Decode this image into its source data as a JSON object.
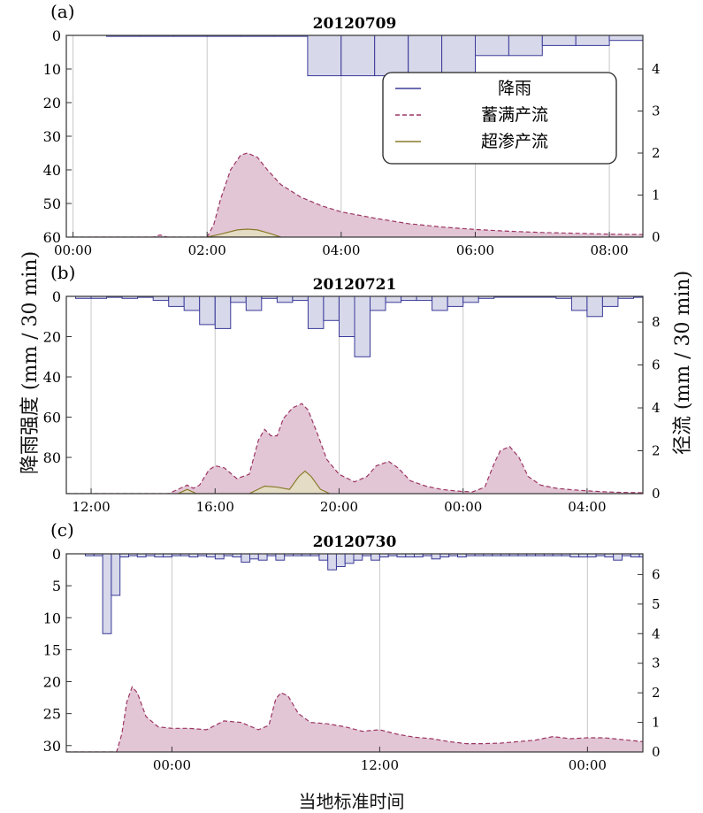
{
  "figure": {
    "ylabel_left": "降雨强度  (mm / 30 min)",
    "ylabel_right": "径流  (mm / 30 min)",
    "xlabel": "当地标准时间",
    "colors": {
      "rain_fill": "#d7d8ea",
      "rain_stroke": "#3b3b9a",
      "runoff_fill": "#e2c6d6",
      "runoff_stroke": "#9c3563",
      "infil_fill": "#e4dcc4",
      "infil_stroke": "#8a7a2a",
      "grid": "#c8c8c8"
    }
  },
  "chart_data": [
    {
      "type": "area",
      "panel_label": "(a)",
      "title": "20120709",
      "xlim_hours": [
        -0.1,
        8.5
      ],
      "x_ticks": [
        {
          "h": 0,
          "label": "00:00"
        },
        {
          "h": 2,
          "label": "02:00"
        },
        {
          "h": 4,
          "label": "04:00"
        },
        {
          "h": 6,
          "label": "06:00"
        },
        {
          "h": 8,
          "label": "08:00"
        }
      ],
      "left_axis": {
        "range": [
          0,
          60
        ],
        "inverted": true,
        "ticks": [
          "0",
          "10",
          "20",
          "30",
          "40",
          "50",
          "60"
        ],
        "tick_values": [
          0,
          10,
          20,
          30,
          40,
          50,
          60
        ]
      },
      "right_axis": {
        "range": [
          0,
          4.8
        ],
        "ticks": [
          "0",
          "1",
          "2",
          "3",
          "4"
        ],
        "tick_values": [
          0,
          1,
          2,
          3,
          4
        ]
      },
      "legend": {
        "placement": "top-right",
        "entries": [
          {
            "label": "降雨",
            "style": "rain"
          },
          {
            "label": "蓄满产流",
            "style": "saturation"
          },
          {
            "label": "超渗产流",
            "style": "infiltration"
          }
        ]
      },
      "rain": {
        "start_h": 0.5,
        "bin_h": 0.5,
        "values": [
          0.3,
          0.3,
          0.3,
          0.3,
          0.3,
          0.3,
          12,
          12,
          12,
          18.5,
          18.5,
          6,
          6,
          3,
          3,
          1.5,
          1.5,
          0.5,
          0.5,
          0.3,
          0.3
        ]
      },
      "runoff_saturation": {
        "x": [
          0,
          1.2,
          1.3,
          1.4,
          1.6,
          2.0,
          2.1,
          2.2,
          2.35,
          2.5,
          2.6,
          2.75,
          2.9,
          3.1,
          3.4,
          3.7,
          4.0,
          4.5,
          5.0,
          5.5,
          6.0,
          6.5,
          7.0,
          7.5,
          8.0,
          8.5
        ],
        "y": [
          0,
          0,
          0.05,
          0,
          0,
          0,
          0.3,
          0.9,
          1.6,
          1.95,
          2.0,
          1.9,
          1.6,
          1.25,
          0.95,
          0.75,
          0.6,
          0.45,
          0.32,
          0.24,
          0.18,
          0.14,
          0.11,
          0.09,
          0.07,
          0.06
        ]
      },
      "runoff_infiltration": {
        "x": [
          2.0,
          2.2,
          2.45,
          2.6,
          2.75,
          2.95,
          3.1
        ],
        "y": [
          0,
          0.07,
          0.17,
          0.19,
          0.17,
          0.08,
          0
        ]
      }
    },
    {
      "type": "area",
      "panel_label": "(b)",
      "title": "20120721",
      "xlim_hours": [
        11.2,
        29.8
      ],
      "x_ticks": [
        {
          "h": 12,
          "label": "12:00"
        },
        {
          "h": 16,
          "label": "16:00"
        },
        {
          "h": 20,
          "label": "20:00"
        },
        {
          "h": 24,
          "label": "00:00"
        },
        {
          "h": 28,
          "label": "04:00"
        }
      ],
      "left_axis": {
        "range": [
          0,
          98
        ],
        "inverted": true,
        "ticks": [
          "0",
          "20",
          "40",
          "60",
          "80"
        ],
        "tick_values": [
          0,
          20,
          40,
          60,
          80
        ]
      },
      "right_axis": {
        "range": [
          0,
          9.2
        ],
        "ticks": [
          "0",
          "2",
          "4",
          "6",
          "8"
        ],
        "tick_values": [
          0,
          2,
          4,
          6,
          8
        ]
      },
      "rain": {
        "start_h": 11.5,
        "bin_h": 0.5,
        "values": [
          1,
          1,
          0.5,
          1,
          0.5,
          2,
          5,
          7,
          14,
          16,
          3,
          7,
          1,
          3,
          2,
          16,
          12,
          20,
          30,
          7,
          3,
          2,
          2,
          7,
          5,
          3,
          1,
          0.3,
          0.3,
          0.3,
          0.3,
          1,
          7,
          10,
          5,
          1,
          0.5
        ]
      },
      "runoff_saturation": {
        "x": [
          11.2,
          14.5,
          14.8,
          15.1,
          15.3,
          15.5,
          15.8,
          16.0,
          16.3,
          16.7,
          17.1,
          17.4,
          17.6,
          17.8,
          18.0,
          18.2,
          18.5,
          18.8,
          19.0,
          19.3,
          19.6,
          20.0,
          20.5,
          20.9,
          21.2,
          21.6,
          21.9,
          22.3,
          22.8,
          23.3,
          23.8,
          24.3,
          24.7,
          25.0,
          25.2,
          25.5,
          25.8,
          26.1,
          26.5,
          27.0,
          27.5,
          28.0,
          28.5,
          29.0,
          29.8
        ],
        "y": [
          0,
          0,
          0.2,
          0.4,
          0.25,
          0.4,
          1.1,
          1.3,
          1.2,
          0.7,
          0.9,
          2.5,
          3.0,
          2.7,
          2.7,
          3.5,
          4.0,
          4.2,
          3.9,
          2.8,
          1.6,
          0.9,
          0.55,
          0.8,
          1.3,
          1.5,
          1.2,
          0.6,
          0.35,
          0.2,
          0.12,
          0.08,
          0.3,
          1.4,
          2.0,
          2.2,
          1.7,
          0.8,
          0.4,
          0.25,
          0.18,
          0.13,
          0.09,
          0.06,
          0.04
        ]
      },
      "runoff_infiltration": {
        "x": [
          14.8,
          15.1,
          15.4,
          17.1,
          17.6,
          18.0,
          18.4,
          18.7,
          18.9,
          19.1,
          19.4,
          19.7
        ],
        "y": [
          0,
          0.2,
          0,
          0,
          0.35,
          0.3,
          0.2,
          0.8,
          1.05,
          0.8,
          0.2,
          0
        ]
      }
    },
    {
      "type": "area",
      "panel_label": "(c)",
      "title": "20120730",
      "xlim_hours": [
        17.9,
        51.2
      ],
      "x_ticks": [
        {
          "h": 24,
          "label": "00:00"
        },
        {
          "h": 36,
          "label": "12:00"
        },
        {
          "h": 48,
          "label": "00:00"
        }
      ],
      "left_axis": {
        "range": [
          0,
          31
        ],
        "inverted": true,
        "ticks": [
          "0",
          "5",
          "10",
          "15",
          "20",
          "25",
          "30"
        ],
        "tick_values": [
          0,
          5,
          10,
          15,
          20,
          25,
          30
        ]
      },
      "right_axis": {
        "range": [
          0,
          6.7
        ],
        "ticks": [
          "0",
          "1",
          "2",
          "3",
          "4",
          "5",
          "6"
        ],
        "tick_values": [
          0,
          1,
          2,
          3,
          4,
          5,
          6
        ]
      },
      "rain": {
        "start_h": 19.0,
        "bin_h": 0.5,
        "values": [
          0.3,
          0.3,
          12.5,
          6.5,
          0.5,
          0.3,
          0.5,
          0.3,
          0.5,
          0.5,
          0.3,
          0.3,
          0.5,
          0.3,
          0.5,
          0.8,
          0.3,
          0.5,
          1.3,
          0.8,
          1.0,
          0.3,
          1.0,
          0.3,
          0.3,
          0.3,
          0.3,
          1.0,
          2.5,
          2.0,
          1.5,
          1.0,
          0.3,
          1.0,
          0.5,
          0.3,
          0.5,
          0.5,
          0.5,
          0.3,
          0.8,
          0.5,
          0.3,
          0.5,
          0.3,
          0.3,
          0.3,
          0.3,
          0.3,
          0.3,
          0.3,
          0.3,
          0.3,
          0.3,
          0.3,
          0.3,
          0.5,
          0.5,
          0.5,
          0.3,
          0.5,
          1.0,
          0.3,
          0.5,
          0.5,
          0.3,
          0.5,
          0.5,
          0.3,
          0.5,
          0.5,
          0.3,
          0.3
        ]
      },
      "runoff_saturation": {
        "x": [
          17.9,
          20.8,
          21.1,
          21.4,
          21.7,
          22.0,
          22.5,
          23.2,
          24.0,
          25.0,
          26.0,
          27.0,
          28.0,
          29.0,
          29.6,
          30.0,
          30.3,
          30.7,
          31.0,
          31.3,
          32.0,
          33.0,
          34.0,
          35.0,
          36.0,
          37.0,
          38.0,
          39.0,
          40.0,
          41.0,
          42.0,
          43.0,
          44.0,
          45.0,
          46.0,
          47.0,
          48.0,
          49.0,
          50.0,
          51.2
        ],
        "y": [
          0,
          0,
          0.6,
          1.7,
          2.2,
          2.0,
          1.2,
          0.85,
          0.8,
          0.8,
          0.75,
          1.05,
          1.0,
          0.75,
          0.9,
          1.8,
          2.0,
          1.9,
          1.6,
          1.3,
          1.0,
          0.95,
          0.85,
          0.7,
          0.75,
          0.6,
          0.5,
          0.45,
          0.35,
          0.28,
          0.28,
          0.3,
          0.35,
          0.4,
          0.52,
          0.45,
          0.48,
          0.48,
          0.42,
          0.35
        ]
      }
    }
  ]
}
